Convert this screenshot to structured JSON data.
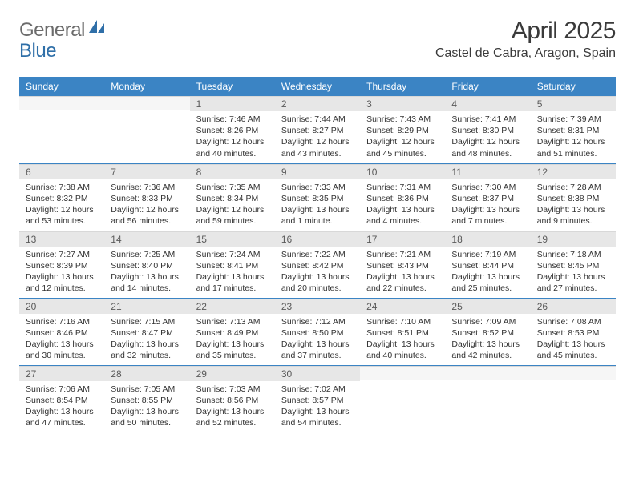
{
  "brand": {
    "part1": "General",
    "part2": "Blue"
  },
  "title": "April 2025",
  "location": "Castel de Cabra, Aragon, Spain",
  "colors": {
    "header_bg": "#3b84c4",
    "header_text": "#ffffff",
    "daynum_bg": "#e7e7e7",
    "text": "#333333",
    "rule": "#3b84c4"
  },
  "weekdays": [
    "Sunday",
    "Monday",
    "Tuesday",
    "Wednesday",
    "Thursday",
    "Friday",
    "Saturday"
  ],
  "weeks": [
    [
      null,
      null,
      {
        "n": "1",
        "sr": "Sunrise: 7:46 AM",
        "ss": "Sunset: 8:26 PM",
        "d1": "Daylight: 12 hours",
        "d2": "and 40 minutes."
      },
      {
        "n": "2",
        "sr": "Sunrise: 7:44 AM",
        "ss": "Sunset: 8:27 PM",
        "d1": "Daylight: 12 hours",
        "d2": "and 43 minutes."
      },
      {
        "n": "3",
        "sr": "Sunrise: 7:43 AM",
        "ss": "Sunset: 8:29 PM",
        "d1": "Daylight: 12 hours",
        "d2": "and 45 minutes."
      },
      {
        "n": "4",
        "sr": "Sunrise: 7:41 AM",
        "ss": "Sunset: 8:30 PM",
        "d1": "Daylight: 12 hours",
        "d2": "and 48 minutes."
      },
      {
        "n": "5",
        "sr": "Sunrise: 7:39 AM",
        "ss": "Sunset: 8:31 PM",
        "d1": "Daylight: 12 hours",
        "d2": "and 51 minutes."
      }
    ],
    [
      {
        "n": "6",
        "sr": "Sunrise: 7:38 AM",
        "ss": "Sunset: 8:32 PM",
        "d1": "Daylight: 12 hours",
        "d2": "and 53 minutes."
      },
      {
        "n": "7",
        "sr": "Sunrise: 7:36 AM",
        "ss": "Sunset: 8:33 PM",
        "d1": "Daylight: 12 hours",
        "d2": "and 56 minutes."
      },
      {
        "n": "8",
        "sr": "Sunrise: 7:35 AM",
        "ss": "Sunset: 8:34 PM",
        "d1": "Daylight: 12 hours",
        "d2": "and 59 minutes."
      },
      {
        "n": "9",
        "sr": "Sunrise: 7:33 AM",
        "ss": "Sunset: 8:35 PM",
        "d1": "Daylight: 13 hours",
        "d2": "and 1 minute."
      },
      {
        "n": "10",
        "sr": "Sunrise: 7:31 AM",
        "ss": "Sunset: 8:36 PM",
        "d1": "Daylight: 13 hours",
        "d2": "and 4 minutes."
      },
      {
        "n": "11",
        "sr": "Sunrise: 7:30 AM",
        "ss": "Sunset: 8:37 PM",
        "d1": "Daylight: 13 hours",
        "d2": "and 7 minutes."
      },
      {
        "n": "12",
        "sr": "Sunrise: 7:28 AM",
        "ss": "Sunset: 8:38 PM",
        "d1": "Daylight: 13 hours",
        "d2": "and 9 minutes."
      }
    ],
    [
      {
        "n": "13",
        "sr": "Sunrise: 7:27 AM",
        "ss": "Sunset: 8:39 PM",
        "d1": "Daylight: 13 hours",
        "d2": "and 12 minutes."
      },
      {
        "n": "14",
        "sr": "Sunrise: 7:25 AM",
        "ss": "Sunset: 8:40 PM",
        "d1": "Daylight: 13 hours",
        "d2": "and 14 minutes."
      },
      {
        "n": "15",
        "sr": "Sunrise: 7:24 AM",
        "ss": "Sunset: 8:41 PM",
        "d1": "Daylight: 13 hours",
        "d2": "and 17 minutes."
      },
      {
        "n": "16",
        "sr": "Sunrise: 7:22 AM",
        "ss": "Sunset: 8:42 PM",
        "d1": "Daylight: 13 hours",
        "d2": "and 20 minutes."
      },
      {
        "n": "17",
        "sr": "Sunrise: 7:21 AM",
        "ss": "Sunset: 8:43 PM",
        "d1": "Daylight: 13 hours",
        "d2": "and 22 minutes."
      },
      {
        "n": "18",
        "sr": "Sunrise: 7:19 AM",
        "ss": "Sunset: 8:44 PM",
        "d1": "Daylight: 13 hours",
        "d2": "and 25 minutes."
      },
      {
        "n": "19",
        "sr": "Sunrise: 7:18 AM",
        "ss": "Sunset: 8:45 PM",
        "d1": "Daylight: 13 hours",
        "d2": "and 27 minutes."
      }
    ],
    [
      {
        "n": "20",
        "sr": "Sunrise: 7:16 AM",
        "ss": "Sunset: 8:46 PM",
        "d1": "Daylight: 13 hours",
        "d2": "and 30 minutes."
      },
      {
        "n": "21",
        "sr": "Sunrise: 7:15 AM",
        "ss": "Sunset: 8:47 PM",
        "d1": "Daylight: 13 hours",
        "d2": "and 32 minutes."
      },
      {
        "n": "22",
        "sr": "Sunrise: 7:13 AM",
        "ss": "Sunset: 8:49 PM",
        "d1": "Daylight: 13 hours",
        "d2": "and 35 minutes."
      },
      {
        "n": "23",
        "sr": "Sunrise: 7:12 AM",
        "ss": "Sunset: 8:50 PM",
        "d1": "Daylight: 13 hours",
        "d2": "and 37 minutes."
      },
      {
        "n": "24",
        "sr": "Sunrise: 7:10 AM",
        "ss": "Sunset: 8:51 PM",
        "d1": "Daylight: 13 hours",
        "d2": "and 40 minutes."
      },
      {
        "n": "25",
        "sr": "Sunrise: 7:09 AM",
        "ss": "Sunset: 8:52 PM",
        "d1": "Daylight: 13 hours",
        "d2": "and 42 minutes."
      },
      {
        "n": "26",
        "sr": "Sunrise: 7:08 AM",
        "ss": "Sunset: 8:53 PM",
        "d1": "Daylight: 13 hours",
        "d2": "and 45 minutes."
      }
    ],
    [
      {
        "n": "27",
        "sr": "Sunrise: 7:06 AM",
        "ss": "Sunset: 8:54 PM",
        "d1": "Daylight: 13 hours",
        "d2": "and 47 minutes."
      },
      {
        "n": "28",
        "sr": "Sunrise: 7:05 AM",
        "ss": "Sunset: 8:55 PM",
        "d1": "Daylight: 13 hours",
        "d2": "and 50 minutes."
      },
      {
        "n": "29",
        "sr": "Sunrise: 7:03 AM",
        "ss": "Sunset: 8:56 PM",
        "d1": "Daylight: 13 hours",
        "d2": "and 52 minutes."
      },
      {
        "n": "30",
        "sr": "Sunrise: 7:02 AM",
        "ss": "Sunset: 8:57 PM",
        "d1": "Daylight: 13 hours",
        "d2": "and 54 minutes."
      },
      null,
      null,
      null
    ]
  ]
}
